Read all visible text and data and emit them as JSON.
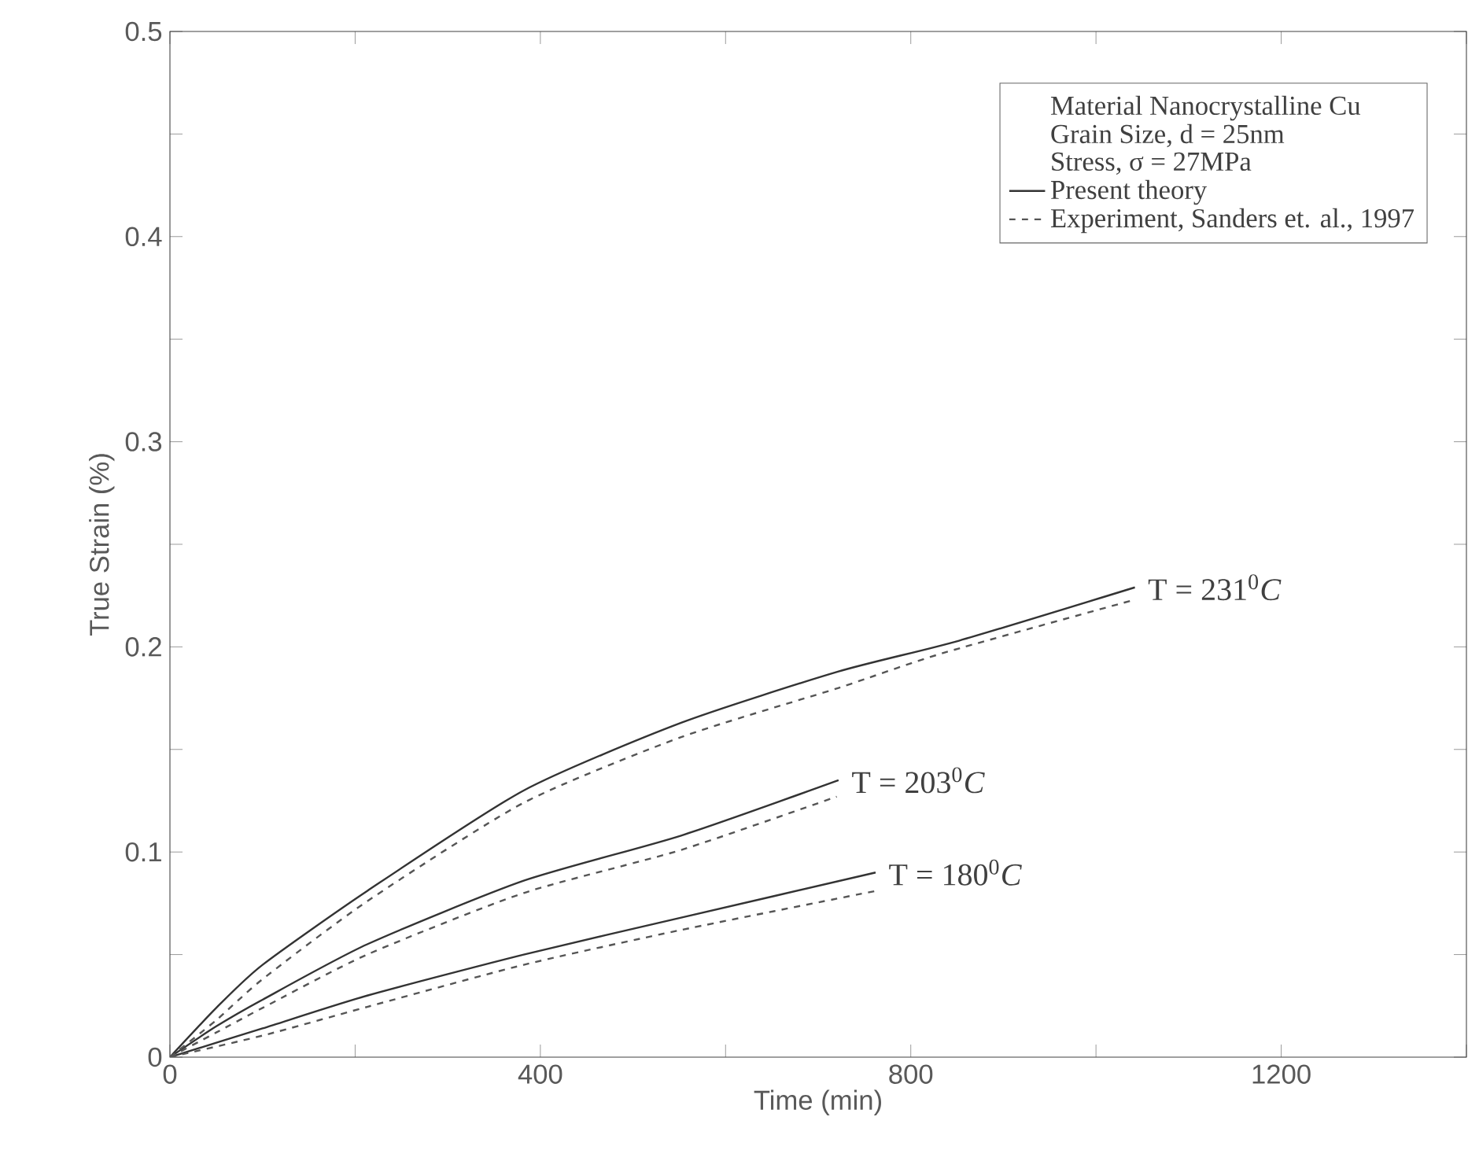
{
  "chart_data": {
    "type": "line",
    "xlabel": "Time (min)",
    "ylabel": "True Strain (%)",
    "xlim": [
      0,
      1400
    ],
    "ylim": [
      0,
      0.5
    ],
    "xticks": [
      0,
      {
        "value": 200,
        "label": null
      },
      400,
      {
        "value": 600,
        "label": null
      },
      800,
      {
        "value": 1000,
        "label": null
      },
      1200,
      {
        "value": 1400,
        "label": null
      }
    ],
    "yticks": [
      0,
      {
        "value": 0.05,
        "label": null
      },
      0.1,
      {
        "value": 0.15,
        "label": null
      },
      0.2,
      {
        "value": 0.25,
        "label": null
      },
      0.3,
      {
        "value": 0.35,
        "label": null
      },
      0.4,
      {
        "value": 0.45,
        "label": null
      },
      0.5
    ],
    "legend": "top right",
    "grid": false,
    "marker": "none",
    "annotations": [
      "Material Nanocrystalline Cu",
      "Grain Size, d = 25nm",
      "Stress, σ = 27MPa",
      {
        "text": "T = 231$^{0}$*C*",
        "x": 1042,
        "y": 0.229
      },
      {
        "text": "T = 203$^{0}$*C*",
        "x": 722,
        "y": 0.135
      },
      {
        "text": "T = 180$^{0}$*C*",
        "x": 762,
        "y": 0.09
      }
    ],
    "series": [
      {
        "name": "Present theory",
        "color": "#333333",
        "line_style": "solid",
        "x": [
          0,
          50,
          100,
          213,
          382,
          552,
          722,
          852,
          1042
        ],
        "values": [
          0,
          0.024,
          0.045,
          0.081,
          0.13,
          0.163,
          0.188,
          0.203,
          0.229
        ]
      },
      {
        "color": "#333333",
        "line_style": "solid",
        "x": [
          0,
          50,
          100,
          213,
          382,
          552,
          722
        ],
        "values": [
          0,
          0.015,
          0.028,
          0.055,
          0.086,
          0.108,
          0.135
        ]
      },
      {
        "color": "#333333",
        "line_style": "solid",
        "x": [
          0,
          100,
          213,
          382,
          552,
          762
        ],
        "values": [
          0,
          0.014,
          0.03,
          0.05,
          0.068,
          0.09
        ]
      },
      {
        "name": "Experiment, Sanders et. al., 1997",
        "color": "#555555",
        "line_style": "dashed",
        "x": [
          0,
          50,
          100,
          213,
          382,
          552,
          722,
          835,
          1042
        ],
        "values": [
          0,
          0.018,
          0.038,
          0.076,
          0.124,
          0.156,
          0.18,
          0.197,
          0.223
        ]
      },
      {
        "color": "#555555",
        "line_style": "dashed",
        "x": [
          0,
          50,
          100,
          213,
          382,
          552,
          720
        ],
        "values": [
          0,
          0.012,
          0.024,
          0.05,
          0.08,
          0.101,
          0.127
        ]
      },
      {
        "color": "#555555",
        "line_style": "dashed",
        "x": [
          0,
          100,
          213,
          382,
          552,
          762
        ],
        "values": [
          0,
          0.0105,
          0.0245,
          0.045,
          0.062,
          0.081
        ]
      }
    ]
  }
}
